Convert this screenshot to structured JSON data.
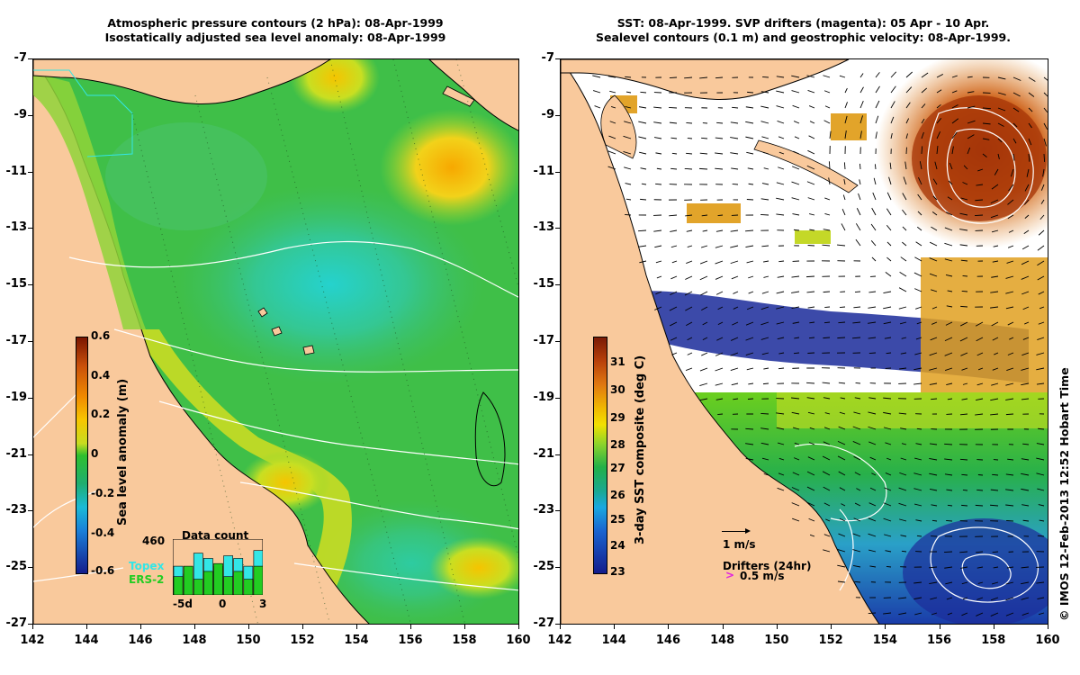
{
  "left_panel": {
    "title_line1": "Atmospheric pressure contours (2 hPa): 08-Apr-1999",
    "title_line2": "Isostatically adjusted sea level anomaly: 08-Apr-1999",
    "colorbar": {
      "label": "Sea level anomaly (m)",
      "ticks": [
        "0.6",
        "0.4",
        "0.2",
        "0",
        "-0.2",
        "-0.4",
        "-0.6"
      ]
    },
    "data_count": {
      "title": "Data count",
      "max_label": "460",
      "x_ticks": [
        "-5d",
        "0",
        "3"
      ],
      "series": [
        {
          "name": "Topex",
          "color": "#33e6e6"
        },
        {
          "name": "ERS-2",
          "color": "#22cc22"
        }
      ],
      "topex_values": [
        0.55,
        0.4,
        0.8,
        0.7,
        0.55,
        0.75,
        0.7,
        0.55,
        0.85
      ],
      "ers_values": [
        0.35,
        0.55,
        0.3,
        0.45,
        0.6,
        0.35,
        0.45,
        0.3,
        0.55
      ]
    }
  },
  "right_panel": {
    "title_line1": "SST: 08-Apr-1999. SVP drifters (magenta): 05 Apr - 10 Apr.",
    "title_line2": "Sealevel contours (0.1 m) and geostrophic velocity: 08-Apr-1999.",
    "colorbar": {
      "label": "3-day SST composite (deg C)",
      "ticks": [
        "31",
        "30",
        "29",
        "28",
        "27",
        "26",
        "25",
        "24",
        "23"
      ]
    },
    "scale_label": "1 m/s",
    "drifters_label": "Drifters (24hr)",
    "drifter_speed_label": "0.5 m/s"
  },
  "axes": {
    "y_ticks": [
      "-7",
      "-9",
      "-11",
      "-13",
      "-15",
      "-17",
      "-19",
      "-21",
      "-23",
      "-25",
      "-27"
    ],
    "x_ticks": [
      "142",
      "144",
      "146",
      "148",
      "150",
      "152",
      "154",
      "156",
      "158",
      "160"
    ]
  },
  "copyright": "© IMOS 12-Feb-2013 12:52 Hobart Time",
  "colors": {
    "land": "#f9c99c",
    "sea_green": "#3cbf3c",
    "anomaly_high": "#f7a800",
    "anomaly_low": "#22cccc",
    "sst_hot": "#b83c0a",
    "sst_cold": "#0a1a8c"
  }
}
